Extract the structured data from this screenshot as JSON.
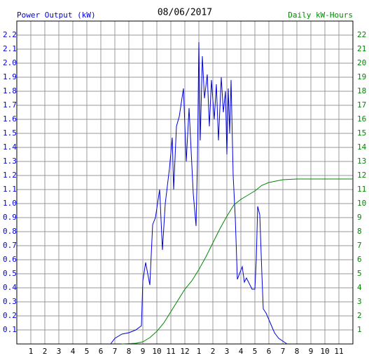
{
  "chart_data": {
    "type": "line",
    "title": "08/06/2017",
    "ylabel": "Power Output (kW)",
    "y2label": "Daily kW-Hours",
    "xlim": [
      0,
      24
    ],
    "xticks": [
      1,
      2,
      3,
      4,
      5,
      6,
      7,
      8,
      9,
      10,
      11,
      12,
      {
        "value": 13,
        "label": "1"
      },
      {
        "value": 14,
        "label": "2"
      },
      {
        "value": 15,
        "label": "3"
      },
      {
        "value": 16,
        "label": "4"
      },
      {
        "value": 17,
        "label": "5"
      },
      {
        "value": 18,
        "label": "6"
      },
      {
        "value": 19,
        "label": "7"
      },
      {
        "value": 20,
        "label": "8"
      },
      {
        "value": 21,
        "label": "9"
      },
      {
        "value": 22,
        "label": "10"
      },
      {
        "value": 23,
        "label": "11"
      }
    ],
    "ylim": [
      0,
      2.3
    ],
    "yticks": [
      0.1,
      0.2,
      0.3,
      0.4,
      0.5,
      0.6,
      0.7,
      0.8,
      0.9,
      {
        "value": 1.0,
        "label": "1.0"
      },
      1.1,
      1.2,
      1.3,
      1.4,
      1.5,
      1.6,
      1.7,
      1.8,
      1.9,
      {
        "value": 2.0,
        "label": "2.0"
      },
      2.1,
      2.2
    ],
    "y2lim": [
      0,
      23
    ],
    "y2ticks": [
      1,
      2,
      3,
      4,
      5,
      6,
      7,
      8,
      9,
      10,
      11,
      12,
      13,
      14,
      15,
      16,
      17,
      18,
      19,
      20,
      21,
      22
    ],
    "grid": true,
    "series": [
      {
        "color": "#0000dd",
        "x": [
          6.7,
          7.0,
          7.5,
          8.0,
          8.5,
          8.9,
          9.0,
          9.2,
          9.5,
          9.7,
          9.9,
          10.2,
          10.4,
          10.6,
          10.9,
          11.1,
          11.2,
          11.4,
          11.6,
          11.9,
          12.1,
          12.3,
          12.6,
          12.8,
          12.9,
          13.0,
          13.1,
          13.25,
          13.4,
          13.6,
          13.75,
          13.9,
          14.1,
          14.25,
          14.4,
          14.6,
          14.75,
          14.9,
          15.0,
          15.1,
          15.2,
          15.3,
          15.45,
          15.6,
          15.75,
          15.9,
          16.1,
          16.25,
          16.4,
          16.6,
          16.8,
          17.0,
          17.1,
          17.2,
          17.35,
          17.5,
          17.6,
          17.8,
          18.1,
          18.4,
          18.7,
          19.0,
          19.3
        ],
        "values": [
          0,
          0.04,
          0.07,
          0.08,
          0.1,
          0.13,
          0.45,
          0.58,
          0.42,
          0.85,
          0.9,
          1.1,
          0.67,
          1.0,
          1.25,
          1.47,
          1.1,
          1.55,
          1.62,
          1.82,
          1.3,
          1.68,
          1.07,
          0.84,
          1.3,
          2.15,
          1.45,
          2.05,
          1.75,
          1.92,
          1.55,
          1.88,
          1.6,
          1.85,
          1.45,
          1.9,
          1.65,
          1.8,
          1.35,
          1.82,
          1.5,
          1.88,
          1.2,
          0.9,
          0.46,
          0.5,
          0.55,
          0.44,
          0.47,
          0.43,
          0.39,
          0.39,
          0.6,
          0.98,
          0.92,
          0.5,
          0.25,
          0.22,
          0.15,
          0.08,
          0.04,
          0.02,
          0
        ]
      },
      {
        "color": "#008800",
        "axis": "y2",
        "x": [
          7.5,
          8.5,
          9.0,
          9.5,
          10.0,
          10.5,
          11.0,
          11.5,
          12.0,
          12.5,
          13.0,
          13.5,
          14.0,
          14.5,
          15.0,
          15.5,
          16.0,
          16.5,
          17.0,
          17.5,
          18.0,
          18.5,
          19.0,
          20.0,
          24.0
        ],
        "values": [
          0,
          0.05,
          0.15,
          0.45,
          0.9,
          1.5,
          2.3,
          3.1,
          3.9,
          4.5,
          5.3,
          6.2,
          7.2,
          8.2,
          9.1,
          9.9,
          10.3,
          10.6,
          10.9,
          11.3,
          11.5,
          11.6,
          11.7,
          11.75,
          11.75
        ]
      }
    ]
  }
}
